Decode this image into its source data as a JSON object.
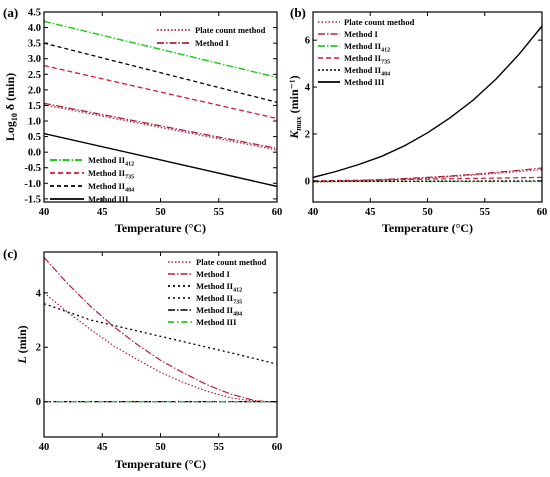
{
  "chart_data": [
    {
      "panel": "(a)",
      "type": "line",
      "xlabel": "Temperature (°C)",
      "ylabel_base": "Log",
      "ylabel_sub": "10",
      "ylabel_rest": "δ (min)",
      "xlim": [
        40,
        60
      ],
      "ylim": [
        -1.6,
        4.5
      ],
      "xticks": [
        40,
        45,
        50,
        55,
        60
      ],
      "yticks": [
        -1.5,
        -1.0,
        -0.5,
        0.0,
        0.5,
        1.0,
        1.5,
        2.0,
        2.5,
        3.0,
        3.5,
        4.0,
        4.5
      ],
      "ytick_labels": [
        "-1.5",
        "-1.0",
        "-0.5",
        "0.0",
        "0.5",
        "1.0",
        "1.5",
        "2.0",
        "2.5",
        "3.0",
        "3.5",
        "4.0",
        "4.5"
      ],
      "legend_top": [
        0,
        1
      ],
      "legend_bottom": [
        2,
        3,
        4,
        5
      ],
      "series": [
        {
          "name": "Plate count method",
          "sub": "",
          "color": "#b3203a",
          "dash": "1.5,2",
          "width": 1.3,
          "x": [
            40,
            60
          ],
          "y": [
            1.52,
            0.07
          ]
        },
        {
          "name": "Method I",
          "sub": "",
          "color": "#b3203a",
          "dash": "7,2,1.5,2",
          "width": 1.3,
          "x": [
            40,
            60
          ],
          "y": [
            1.57,
            0.12
          ]
        },
        {
          "name": "Method II",
          "sub": "412",
          "color": "#22cc22",
          "dash": "7,2,1.5,2",
          "width": 1.5,
          "x": [
            40,
            60
          ],
          "y": [
            4.2,
            2.4
          ]
        },
        {
          "name": "Method II",
          "sub": "735",
          "color": "#d01a3a",
          "dash": "5,3",
          "width": 1.3,
          "x": [
            40,
            60
          ],
          "y": [
            2.78,
            1.08
          ]
        },
        {
          "name": "Method II",
          "sub": "484",
          "color": "#000000",
          "dash": "4,3",
          "width": 1.3,
          "x": [
            40,
            60
          ],
          "y": [
            3.5,
            1.6
          ]
        },
        {
          "name": "Method III",
          "sub": "",
          "color": "#000000",
          "dash": "",
          "width": 1.4,
          "x": [
            40,
            60
          ],
          "y": [
            0.6,
            -1.1
          ]
        }
      ]
    },
    {
      "panel": "(b)",
      "type": "line",
      "xlabel": "Temperature (°C)",
      "ylabel_base": "K",
      "ylabel_sub": "max",
      "ylabel_rest": "(min⁻¹)",
      "xlim": [
        40,
        60
      ],
      "ylim": [
        -0.9,
        7.2
      ],
      "xticks": [
        40,
        45,
        50,
        55,
        60
      ],
      "yticks": [
        0,
        2,
        4,
        6
      ],
      "ytick_labels": [
        "0",
        "2",
        "4",
        "6"
      ],
      "legend_top": [
        0,
        1,
        2,
        3,
        4,
        5
      ],
      "legend_bottom": [],
      "series": [
        {
          "name": "Plate count method",
          "sub": "",
          "color": "#b3203a",
          "dash": "1.5,2",
          "width": 1.2,
          "x": [
            40,
            42,
            44,
            46,
            48,
            50,
            52,
            54,
            56,
            58,
            60
          ],
          "y": [
            -0.05,
            -0.03,
            0,
            0.03,
            0.07,
            0.12,
            0.18,
            0.25,
            0.32,
            0.4,
            0.48
          ]
        },
        {
          "name": "Method I",
          "sub": "",
          "color": "#b3203a",
          "dash": "7,2,1.5,2",
          "width": 1.2,
          "x": [
            40,
            42,
            44,
            46,
            48,
            50,
            52,
            54,
            56,
            58,
            60
          ],
          "y": [
            -0.03,
            -0.01,
            0.02,
            0.06,
            0.1,
            0.15,
            0.21,
            0.28,
            0.36,
            0.45,
            0.55
          ]
        },
        {
          "name": "Method II",
          "sub": "412",
          "color": "#22cc22",
          "dash": "7,2,1.5,2",
          "width": 1.4,
          "x": [
            40,
            60
          ],
          "y": [
            -0.02,
            -0.02
          ]
        },
        {
          "name": "Method II",
          "sub": "735",
          "color": "#d01a3a",
          "dash": "5,3",
          "width": 1.2,
          "x": [
            40,
            60
          ],
          "y": [
            0.0,
            0.15
          ]
        },
        {
          "name": "Method II",
          "sub": "484",
          "color": "#000000",
          "dash": "2,2",
          "width": 1.2,
          "x": [
            40,
            60
          ],
          "y": [
            -0.02,
            0.0
          ]
        },
        {
          "name": "Method III",
          "sub": "",
          "color": "#000000",
          "dash": "",
          "width": 1.4,
          "x": [
            40,
            42,
            44,
            46,
            48,
            50,
            52,
            54,
            56,
            58,
            60
          ],
          "y": [
            0.15,
            0.4,
            0.7,
            1.05,
            1.5,
            2.05,
            2.7,
            3.45,
            4.35,
            5.4,
            6.6
          ]
        }
      ]
    },
    {
      "panel": "(c)",
      "type": "line",
      "xlabel": "Temperature (°C)",
      "ylabel_base": "L",
      "ylabel_sub": "",
      "ylabel_rest": "(min)",
      "xlim": [
        40,
        60
      ],
      "ylim": [
        -1.3,
        5.5
      ],
      "xticks": [
        40,
        45,
        50,
        55,
        60
      ],
      "yticks": [
        0,
        2,
        4
      ],
      "ytick_labels": [
        "0",
        "2",
        "4"
      ],
      "legend_top": [
        0,
        1,
        2,
        3,
        4,
        5
      ],
      "legend_bottom": [],
      "series": [
        {
          "name": "Plate count method",
          "sub": "",
          "color": "#b3203a",
          "dash": "1.5,2",
          "width": 1.2,
          "x": [
            40,
            42,
            44,
            46,
            48,
            50,
            52,
            54,
            56,
            58,
            59,
            60
          ],
          "y": [
            4.0,
            3.3,
            2.65,
            2.05,
            1.55,
            1.08,
            0.7,
            0.38,
            0.14,
            0.02,
            0,
            0
          ]
        },
        {
          "name": "Method I",
          "sub": "",
          "color": "#b3203a",
          "dash": "7,2,1.5,2",
          "width": 1.2,
          "x": [
            40,
            42,
            44,
            46,
            48,
            50,
            52,
            54,
            56,
            58,
            59,
            60
          ],
          "y": [
            5.3,
            4.35,
            3.5,
            2.75,
            2.1,
            1.52,
            1.05,
            0.62,
            0.28,
            0.05,
            0,
            0
          ]
        },
        {
          "name": "Method II",
          "sub": "412",
          "color": "#000000",
          "dash": "2,3",
          "width": 1.3,
          "x": [
            40,
            44,
            48,
            52,
            56,
            60
          ],
          "y": [
            3.6,
            3.0,
            2.6,
            2.2,
            1.8,
            1.38
          ]
        },
        {
          "name": "Method II",
          "sub": "735",
          "color": "#000000",
          "dash": "2,3",
          "width": 1.2,
          "x": [
            40,
            60
          ],
          "y": [
            0,
            0
          ]
        },
        {
          "name": "Method II",
          "sub": "484",
          "color": "#000000",
          "dash": "7,2,1.5,2",
          "width": 1.2,
          "x": [
            40,
            60
          ],
          "y": [
            0,
            0
          ]
        },
        {
          "name": "Method III",
          "sub": "",
          "color": "#22cc22",
          "dash": "6,3,1.5,3",
          "width": 1.3,
          "x": [
            40,
            60
          ],
          "y": [
            0,
            0
          ]
        }
      ]
    }
  ]
}
